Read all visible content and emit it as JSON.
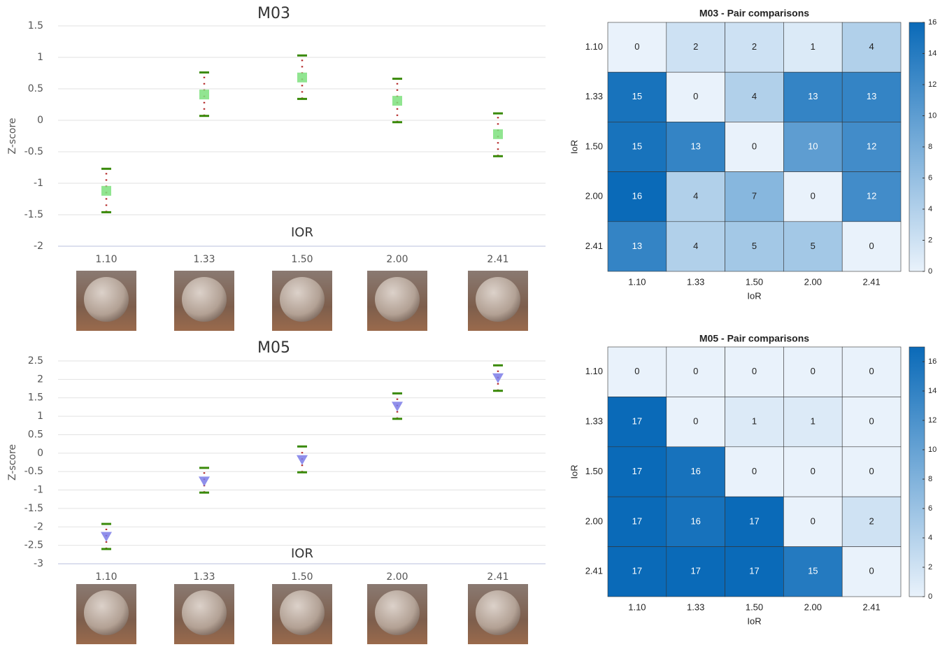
{
  "chart_data": [
    {
      "type": "errorbar",
      "title": "M03",
      "ylabel": "Z-score",
      "xlabel": "IOR",
      "categories": [
        "1.10",
        "1.33",
        "1.50",
        "2.00",
        "2.41"
      ],
      "values": [
        -1.12,
        0.41,
        0.68,
        0.31,
        -0.22
      ],
      "lower": [
        -1.46,
        0.07,
        0.34,
        -0.03,
        -0.57
      ],
      "upper": [
        -0.77,
        0.76,
        1.03,
        0.66,
        0.11
      ],
      "marker": "square",
      "color": "#7ee07e",
      "bar_color": "#b22222",
      "cap_color": "#3a8a0a",
      "ylim": [
        -2,
        1.5
      ],
      "yticks": [
        -2,
        -1.5,
        -1,
        -0.5,
        0,
        0.5,
        1,
        1.5
      ],
      "grid": true
    },
    {
      "type": "errorbar",
      "title": "M05",
      "ylabel": "Z-score",
      "xlabel": "IOR",
      "categories": [
        "1.10",
        "1.33",
        "1.50",
        "2.00",
        "2.41"
      ],
      "values": [
        -2.25,
        -0.75,
        -0.17,
        1.28,
        2.05
      ],
      "lower": [
        -2.6,
        -1.07,
        -0.52,
        0.93,
        1.69
      ],
      "upper": [
        -1.92,
        -0.4,
        0.18,
        1.62,
        2.38
      ],
      "marker": "triangle",
      "color": "#7b7be8",
      "bar_color": "#b22222",
      "cap_color": "#3a8a0a",
      "ylim": [
        -3,
        2.5
      ],
      "yticks": [
        -3,
        -2.5,
        -2,
        -1.5,
        -1,
        -0.5,
        0,
        0.5,
        1,
        1.5,
        2,
        2.5
      ],
      "grid": true
    },
    {
      "type": "heatmap",
      "title": "M03 - Pair comparisons",
      "xlabel": "IoR",
      "ylabel": "IoR",
      "categories": [
        "1.10",
        "1.33",
        "1.50",
        "2.00",
        "2.41"
      ],
      "matrix": [
        [
          0,
          2,
          2,
          1,
          4
        ],
        [
          15,
          0,
          4,
          13,
          13
        ],
        [
          15,
          13,
          0,
          10,
          12
        ],
        [
          16,
          4,
          7,
          0,
          12
        ],
        [
          13,
          4,
          5,
          5,
          0
        ]
      ],
      "clim": [
        0,
        16
      ],
      "cticks": [
        0,
        2,
        4,
        6,
        8,
        10,
        12,
        14,
        16
      ],
      "colors": [
        "#e9f2fb",
        "#0a6ab8"
      ]
    },
    {
      "type": "heatmap",
      "title": "M05 - Pair comparisons",
      "xlabel": "IoR",
      "ylabel": "IoR",
      "categories": [
        "1.10",
        "1.33",
        "1.50",
        "2.00",
        "2.41"
      ],
      "matrix": [
        [
          0,
          0,
          0,
          0,
          0
        ],
        [
          17,
          0,
          1,
          1,
          0
        ],
        [
          17,
          16,
          0,
          0,
          0
        ],
        [
          17,
          16,
          17,
          0,
          2
        ],
        [
          17,
          17,
          17,
          15,
          0
        ]
      ],
      "clim": [
        0,
        17
      ],
      "cticks": [
        0,
        2,
        4,
        6,
        8,
        10,
        12,
        14,
        16
      ],
      "colors": [
        "#e9f2fb",
        "#0a6ab8"
      ]
    }
  ]
}
